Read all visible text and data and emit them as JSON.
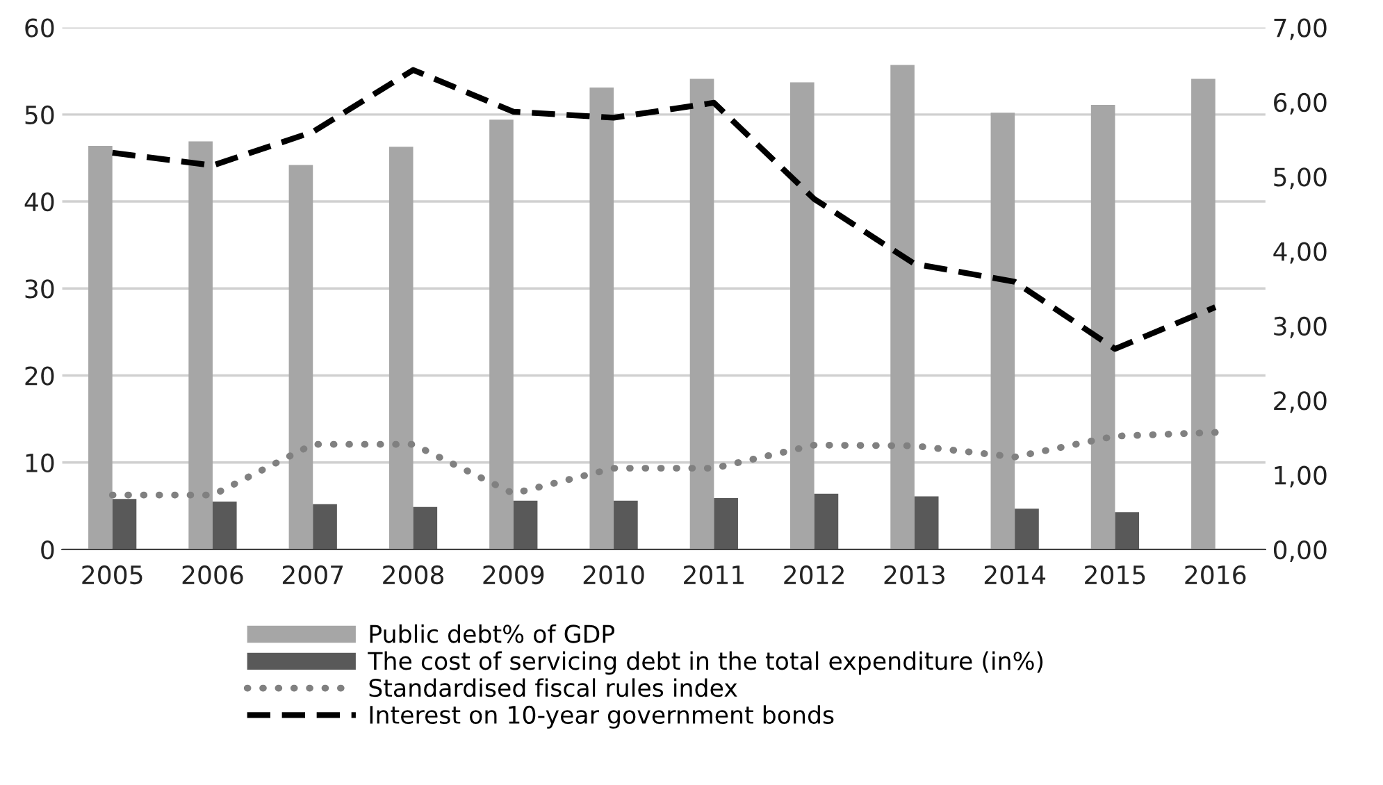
{
  "chart_data": {
    "type": "bar",
    "categories": [
      "2005",
      "2006",
      "2007",
      "2008",
      "2009",
      "2010",
      "2011",
      "2012",
      "2013",
      "2014",
      "2015",
      "2016"
    ],
    "series": [
      {
        "name": "Public debt% of GDP",
        "color": "#a6a6a6",
        "values": [
          46.4,
          46.9,
          44.2,
          46.3,
          49.4,
          53.1,
          54.1,
          53.7,
          55.7,
          50.2,
          51.1,
          54.1
        ]
      },
      {
        "name": "The cost of servicing debt in the total expenditure (in%)",
        "color": "#595959",
        "values": [
          5.8,
          5.5,
          5.2,
          4.9,
          5.6,
          5.6,
          5.9,
          6.4,
          6.1,
          4.7,
          4.3,
          null
        ]
      },
      {
        "name": "Standardised fiscal rules index",
        "type": "line",
        "axis": "y2",
        "color": "#808080",
        "line_style": "dotted",
        "values": [
          0.73,
          0.73,
          1.41,
          1.41,
          0.75,
          1.09,
          1.09,
          1.4,
          1.39,
          1.24,
          1.52,
          1.57
        ]
      },
      {
        "name": "Interest on 10-year government bonds",
        "type": "line",
        "axis": "y2",
        "color": "#000000",
        "line_style": "dashed",
        "values": [
          5.32,
          5.15,
          5.6,
          6.43,
          5.87,
          5.79,
          5.99,
          4.7,
          3.83,
          3.59,
          2.69,
          3.25
        ]
      }
    ],
    "ylim": [
      0,
      60
    ],
    "yticks": [
      0,
      10,
      20,
      30,
      40,
      50,
      60
    ],
    "y2lim": [
      0,
      7
    ],
    "y2ticks": [
      {
        "value": 0,
        "label": "0,00"
      },
      {
        "value": 1,
        "label": "1,00"
      },
      {
        "value": 2,
        "label": "2,00"
      },
      {
        "value": 3,
        "label": "3,00"
      },
      {
        "value": 4,
        "label": "4,00"
      },
      {
        "value": 5,
        "label": "5,00"
      },
      {
        "value": 6,
        "label": "6,00"
      },
      {
        "value": 7,
        "label": "7,00"
      }
    ],
    "grid": "y",
    "legend": "bottom"
  }
}
